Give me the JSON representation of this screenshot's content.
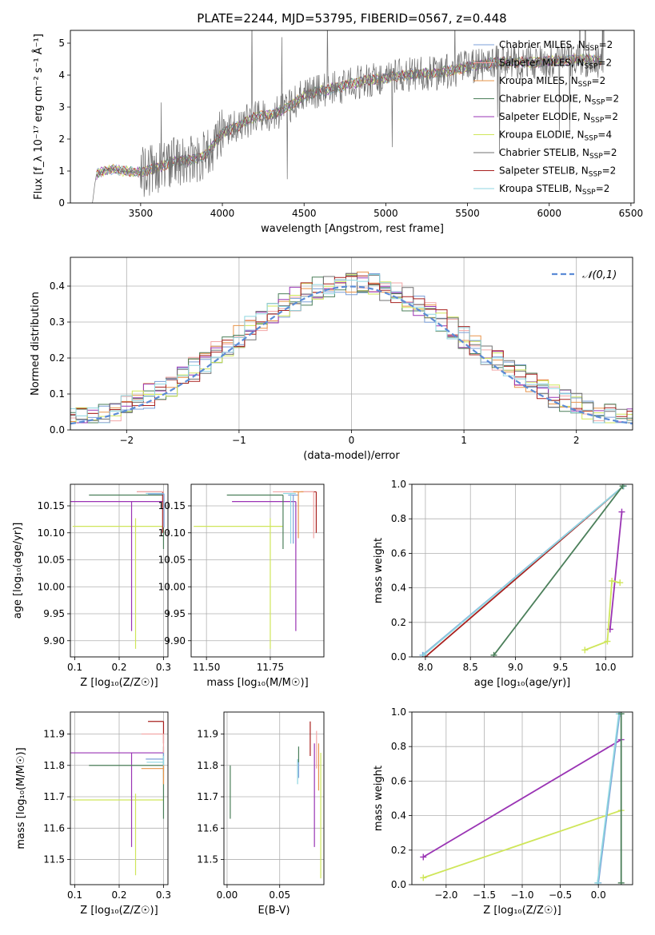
{
  "figure_title": "PLATE=2244, MJD=53795, FIBERID=0567, z=0.448",
  "series": [
    {
      "name": "Chabrier MILES",
      "nssp": "2",
      "color": "#7b9fd8"
    },
    {
      "name": "Salpeter MILES",
      "nssp": "2",
      "color": "#f2a6a6"
    },
    {
      "name": "Kroupa MILES",
      "nssp": "2",
      "color": "#e8944a"
    },
    {
      "name": "Chabrier ELODIE",
      "nssp": "2",
      "color": "#4b7f5a"
    },
    {
      "name": "Salpeter ELODIE",
      "nssp": "2",
      "color": "#9a34b4"
    },
    {
      "name": "Kroupa ELODIE",
      "nssp": "4",
      "color": "#cfe65a"
    },
    {
      "name": "Chabrier STELIB",
      "nssp": "2",
      "color": "#707070"
    },
    {
      "name": "Salpeter STELIB",
      "nssp": "2",
      "color": "#a8201e"
    },
    {
      "name": "Kroupa STELIB",
      "nssp": "2",
      "color": "#8fd6e0"
    }
  ],
  "chart_data": [
    {
      "id": "spectrum",
      "type": "line",
      "xlabel": "wavelength [Angstrom, rest frame]",
      "ylabel": "Flux [f_λ 10⁻¹⁷ erg cm⁻² s⁻¹ Å⁻¹]",
      "xlim": [
        3070,
        6520
      ],
      "ylim": [
        0,
        5.4
      ],
      "xticks": [
        "3500",
        "4000",
        "4500",
        "5000",
        "5500",
        "6000",
        "6500"
      ],
      "yticks": [
        "0",
        "1",
        "2",
        "3",
        "4",
        "5"
      ],
      "legend": "upper right",
      "continuum": {
        "x": [
          3200,
          3230,
          3300,
          3400,
          3500,
          3600,
          3700,
          3800,
          3900,
          4000,
          4100,
          4200,
          4300,
          4400,
          4500,
          4600,
          4700,
          4800,
          4900,
          5000,
          5100,
          5200,
          5300,
          5400,
          5500,
          5600,
          5700,
          5800,
          5900,
          6000,
          6100,
          6200,
          6300
        ],
        "y": [
          0,
          0.9,
          1.05,
          1.0,
          0.95,
          1.1,
          1.3,
          1.35,
          1.5,
          2.2,
          2.4,
          2.7,
          2.75,
          3.0,
          3.35,
          3.5,
          3.6,
          3.75,
          3.85,
          3.9,
          4.0,
          4.05,
          4.05,
          4.15,
          4.25,
          4.35,
          4.4,
          4.4,
          4.4,
          4.45,
          4.45,
          4.5,
          4.45
        ]
      }
    },
    {
      "id": "residuals",
      "type": "line",
      "xlabel": "(data-model)/error",
      "ylabel": "Normed distribution",
      "xlim": [
        -2.5,
        2.5
      ],
      "ylim": [
        0,
        0.48
      ],
      "xticks": [
        "−2",
        "−1",
        "0",
        "1",
        "2"
      ],
      "yticks": [
        "0.0",
        "0.1",
        "0.2",
        "0.3",
        "0.4"
      ],
      "reference_label": "𝒩(0,1)",
      "reference_color": "#5b8bd6",
      "histogram_bin_width": 0.1
    },
    {
      "id": "age-vs-Z",
      "type": "scatter",
      "xlabel": "Z [log₁₀(Z/Z☉)]",
      "ylabel": "age  [log₁₀(age/yr)]",
      "xlim": [
        0.09,
        0.31
      ],
      "ylim": [
        9.87,
        10.19
      ],
      "xticks": [
        "0.1",
        "0.2",
        "0.3"
      ],
      "yticks": [
        "9.90",
        "9.95",
        "10.00",
        "10.05",
        "10.10",
        "10.15"
      ]
    },
    {
      "id": "age-vs-mass",
      "type": "scatter",
      "xlabel": "mass [log₁₀(M/M☉)]",
      "ylabel": "",
      "xlim": [
        11.44,
        11.96
      ],
      "ylim": [
        9.87,
        10.19
      ],
      "xticks": [
        "11.50",
        "11.75"
      ],
      "yticks": [
        "9.90",
        "9.95",
        "10.00",
        "10.05",
        "10.10",
        "10.15"
      ]
    },
    {
      "id": "mass-weight-vs-age",
      "type": "line",
      "xlabel": "age  [log₁₀(age/yr)]",
      "ylabel": "mass weight",
      "xlim": [
        7.85,
        10.3
      ],
      "ylim": [
        0,
        1.0
      ],
      "xticks": [
        "8.0",
        "8.5",
        "9.0",
        "9.5",
        "10.0"
      ],
      "yticks": [
        "0.0",
        "0.2",
        "0.4",
        "0.6",
        "0.8",
        "1.0"
      ],
      "series_lines": [
        {
          "series": "Chabrier MILES",
          "x": [
            7.97,
            10.2
          ],
          "y": [
            0.01,
            0.99
          ]
        },
        {
          "series": "Salpeter STELIB",
          "x": [
            8.0,
            10.2
          ],
          "y": [
            0.0,
            0.99
          ]
        },
        {
          "series": "Kroupa STELIB",
          "x": [
            7.98,
            10.2
          ],
          "y": [
            0.01,
            0.99
          ]
        },
        {
          "series": "Chabrier ELODIE",
          "x": [
            8.76,
            10.19
          ],
          "y": [
            0.01,
            0.99
          ]
        },
        {
          "series": "Salpeter ELODIE",
          "x": [
            10.05,
            10.18
          ],
          "y": [
            0.16,
            0.84
          ]
        },
        {
          "series": "Kroupa ELODIE",
          "x": [
            9.77,
            10.02,
            10.07,
            10.16
          ],
          "y": [
            0.04,
            0.09,
            0.44,
            0.43
          ]
        }
      ]
    },
    {
      "id": "mass-vs-Z",
      "type": "scatter",
      "xlabel": "Z [log₁₀(Z/Z☉)]",
      "ylabel": "mass [log₁₀(M/M☉)]",
      "xlim": [
        0.09,
        0.31
      ],
      "ylim": [
        11.42,
        11.97
      ],
      "xticks": [
        "0.1",
        "0.2",
        "0.3"
      ],
      "yticks": [
        "11.5",
        "11.6",
        "11.7",
        "11.8",
        "11.9"
      ]
    },
    {
      "id": "mass-vs-EBV",
      "type": "scatter",
      "xlabel": "E(B-V)",
      "ylabel": "",
      "xlim": [
        -0.003,
        0.092
      ],
      "ylim": [
        11.42,
        11.97
      ],
      "xticks": [
        "0.00",
        "0.05"
      ],
      "yticks": [
        "11.5",
        "11.6",
        "11.7",
        "11.8",
        "11.9"
      ]
    },
    {
      "id": "mass-weight-vs-Z",
      "type": "line",
      "xlabel": "Z [log₁₀(Z/Z☉)]",
      "ylabel": "mass weight",
      "xlim": [
        -2.45,
        0.45
      ],
      "ylim": [
        0,
        1.0
      ],
      "xticks": [
        "−2.0",
        "−1.5",
        "−1.0",
        "−0.5",
        "0.0"
      ],
      "yticks": [
        "0.0",
        "0.2",
        "0.4",
        "0.6",
        "0.8",
        "1.0"
      ],
      "series_lines": [
        {
          "series": "Salpeter ELODIE",
          "x": [
            -2.3,
            0.3
          ],
          "y": [
            0.16,
            0.84
          ]
        },
        {
          "series": "Kroupa ELODIE",
          "x": [
            -2.3,
            0.3
          ],
          "y": [
            0.04,
            0.43
          ]
        },
        {
          "series": "Chabrier MILES",
          "x": [
            0.0,
            0.28
          ],
          "y": [
            0.01,
            0.99
          ]
        },
        {
          "series": "Kroupa STELIB",
          "x": [
            -0.01,
            0.27
          ],
          "y": [
            0.01,
            0.99
          ]
        },
        {
          "series": "Chabrier ELODIE",
          "x": [
            0.3,
            0.3
          ],
          "y": [
            0.01,
            0.99
          ]
        }
      ]
    }
  ]
}
